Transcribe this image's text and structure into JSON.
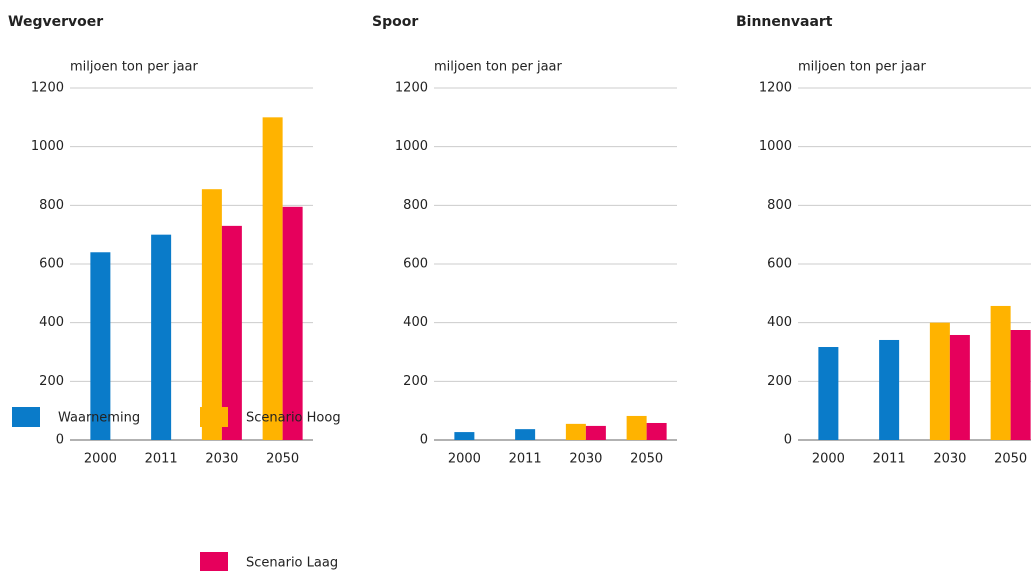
{
  "chart_data": [
    {
      "type": "bar",
      "title": "Wegvervoer",
      "ylabel": "miljoen ton per jaar",
      "categories": [
        "2000",
        "2011",
        "2030",
        "2050"
      ],
      "series": [
        {
          "values": [
            640,
            700,
            null,
            null
          ]
        },
        {
          "values": [
            null,
            null,
            855,
            1100
          ]
        },
        {
          "values": [
            null,
            null,
            730,
            795
          ]
        }
      ],
      "ylim": [
        0,
        1200
      ],
      "yticks": [
        0,
        200,
        400,
        600,
        800,
        1000,
        1200
      ],
      "grid": true
    },
    {
      "type": "bar",
      "title": "Spoor",
      "ylabel": "miljoen ton per jaar",
      "categories": [
        "2000",
        "2011",
        "2030",
        "2050"
      ],
      "series": [
        {
          "values": [
            27,
            37,
            null,
            null
          ]
        },
        {
          "values": [
            null,
            null,
            55,
            82
          ]
        },
        {
          "values": [
            null,
            null,
            48,
            58
          ]
        }
      ],
      "ylim": [
        0,
        1200
      ],
      "yticks": [
        0,
        200,
        400,
        600,
        800,
        1000,
        1200
      ],
      "grid": true
    },
    {
      "type": "bar",
      "title": "Binnenvaart",
      "ylabel": "miljoen ton per jaar",
      "categories": [
        "2000",
        "2011",
        "2030",
        "2050"
      ],
      "series": [
        {
          "values": [
            317,
            341,
            null,
            null
          ]
        },
        {
          "values": [
            null,
            null,
            400,
            457
          ]
        },
        {
          "values": [
            null,
            null,
            358,
            375
          ]
        }
      ],
      "ylim": [
        0,
        1200
      ],
      "yticks": [
        0,
        200,
        400,
        600,
        800,
        1000,
        1200
      ],
      "grid": true
    }
  ],
  "legend": [
    {
      "name": "Waarneming",
      "color": "#0a7bc9"
    },
    {
      "name": "Scenario Hoog",
      "color": "#ffb300"
    },
    {
      "name": "Scenario Laag",
      "color": "#e6005c"
    }
  ]
}
